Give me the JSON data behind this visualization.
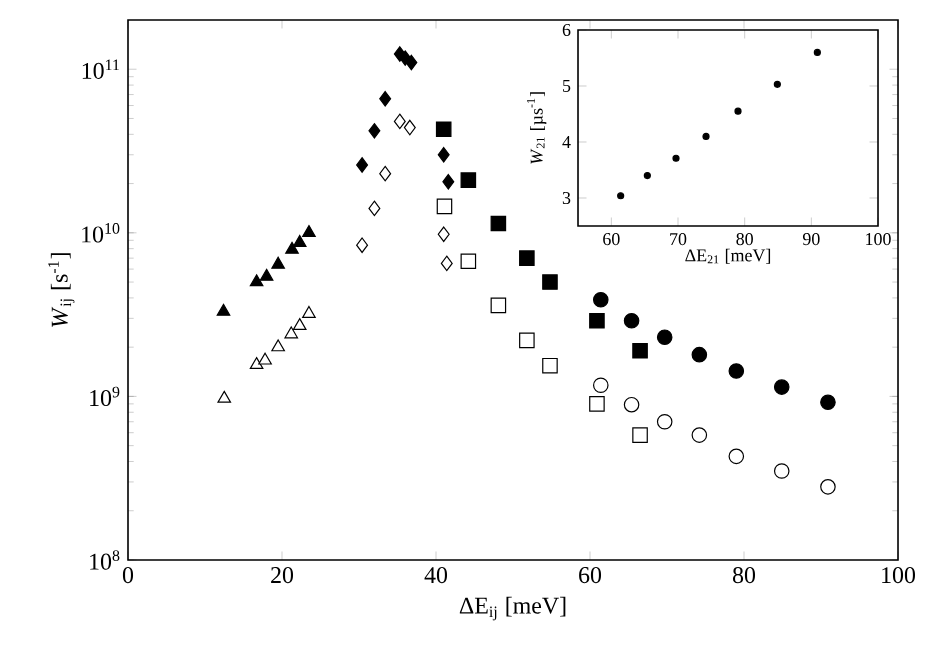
{
  "chart_data": [
    {
      "type": "scatter",
      "log": "y",
      "xlabel": "ΔE$_{ij}$ [meV]",
      "ylabel": "*W*$_{ij}$ [s$^{-1}$]",
      "xlim": [
        0,
        100
      ],
      "xticks": [
        0,
        20,
        40,
        60,
        80,
        100
      ],
      "ylim": [
        100000000,
        200000000000
      ],
      "yticks": [
        {
          "value": 100000000,
          "label": "10$^{8}$"
        },
        {
          "value": 1000000000,
          "label": "10$^{9}$"
        },
        {
          "value": 10000000000,
          "label": "10$^{10}$"
        },
        {
          "value": 100000000000,
          "label": "10$^{11}$"
        }
      ],
      "series": [
        {
          "marker": "triangle",
          "color": "#000000",
          "x": [
            12.4,
            16.7,
            18.0,
            19.5,
            21.3,
            22.3,
            23.5
          ],
          "values": [
            3300000000,
            5000000000,
            5400000000,
            6400000000,
            7900000000,
            8700000000,
            10000000000
          ]
        },
        {
          "marker": "triangle",
          "color": "#ffffff",
          "x": [
            12.5,
            16.7,
            17.8,
            19.5,
            21.2,
            22.3,
            23.5
          ],
          "values": [
            970000000,
            1560000000,
            1660000000,
            2000000000,
            2400000000,
            2700000000,
            3200000000
          ]
        },
        {
          "marker": "diamond",
          "color": "#000000",
          "x": [
            30.4,
            32.0,
            33.4,
            35.3,
            36.0,
            36.8,
            41.0,
            41.6
          ],
          "values": [
            26000000000,
            42000000000,
            66000000000,
            124000000000,
            117000000000,
            110000000000,
            30000000000,
            20500000000
          ]
        },
        {
          "marker": "diamond",
          "color": "#ffffff",
          "x": [
            30.4,
            32.0,
            33.4,
            35.3,
            36.6,
            41.0,
            41.4
          ],
          "values": [
            8400000000,
            14100000000,
            23000000000,
            48000000000,
            44000000000,
            9800000000,
            6500000000
          ]
        },
        {
          "marker": "square",
          "color": "#000000",
          "x": [
            41.0,
            44.2,
            48.1,
            51.8,
            54.8,
            60.9,
            66.5
          ],
          "values": [
            43000000000,
            21000000000,
            11400000000,
            7000000000,
            5000000000,
            2900000000,
            1900000000
          ]
        },
        {
          "marker": "square",
          "color": "#ffffff",
          "x": [
            41.1,
            44.2,
            48.1,
            51.8,
            54.8,
            60.9,
            66.5
          ],
          "values": [
            14500000000,
            6700000000,
            3600000000,
            2200000000,
            1540000000,
            900000000,
            580000000
          ]
        },
        {
          "marker": "circle",
          "color": "#000000",
          "x": [
            61.4,
            65.4,
            69.7,
            74.2,
            79.0,
            84.9,
            90.9
          ],
          "values": [
            3900000000,
            2900000000,
            2300000000,
            1800000000,
            1430000000,
            1140000000,
            920000000
          ]
        },
        {
          "marker": "circle",
          "color": "#ffffff",
          "x": [
            61.4,
            65.4,
            69.7,
            74.2,
            79.0,
            84.9,
            90.9
          ],
          "values": [
            1170000000,
            890000000,
            700000000,
            580000000,
            430000000,
            350000000,
            280000000
          ]
        }
      ]
    },
    {
      "type": "scatter",
      "xlabel": "ΔE$_{21}$ [meV]",
      "ylabel": "*W*$_{21}$ [µs$^{-1}$]",
      "xlim": [
        55,
        100
      ],
      "xticks": [
        60,
        70,
        80,
        90,
        100
      ],
      "ylim": [
        2.5,
        6
      ],
      "yticks": [
        3,
        4,
        5,
        6
      ],
      "series": [
        {
          "color": "#000000",
          "x": [
            61.4,
            65.4,
            69.7,
            74.2,
            79.0,
            84.9,
            90.9
          ],
          "values": [
            3.04,
            3.4,
            3.71,
            4.1,
            4.55,
            5.03,
            5.6
          ]
        }
      ]
    }
  ]
}
